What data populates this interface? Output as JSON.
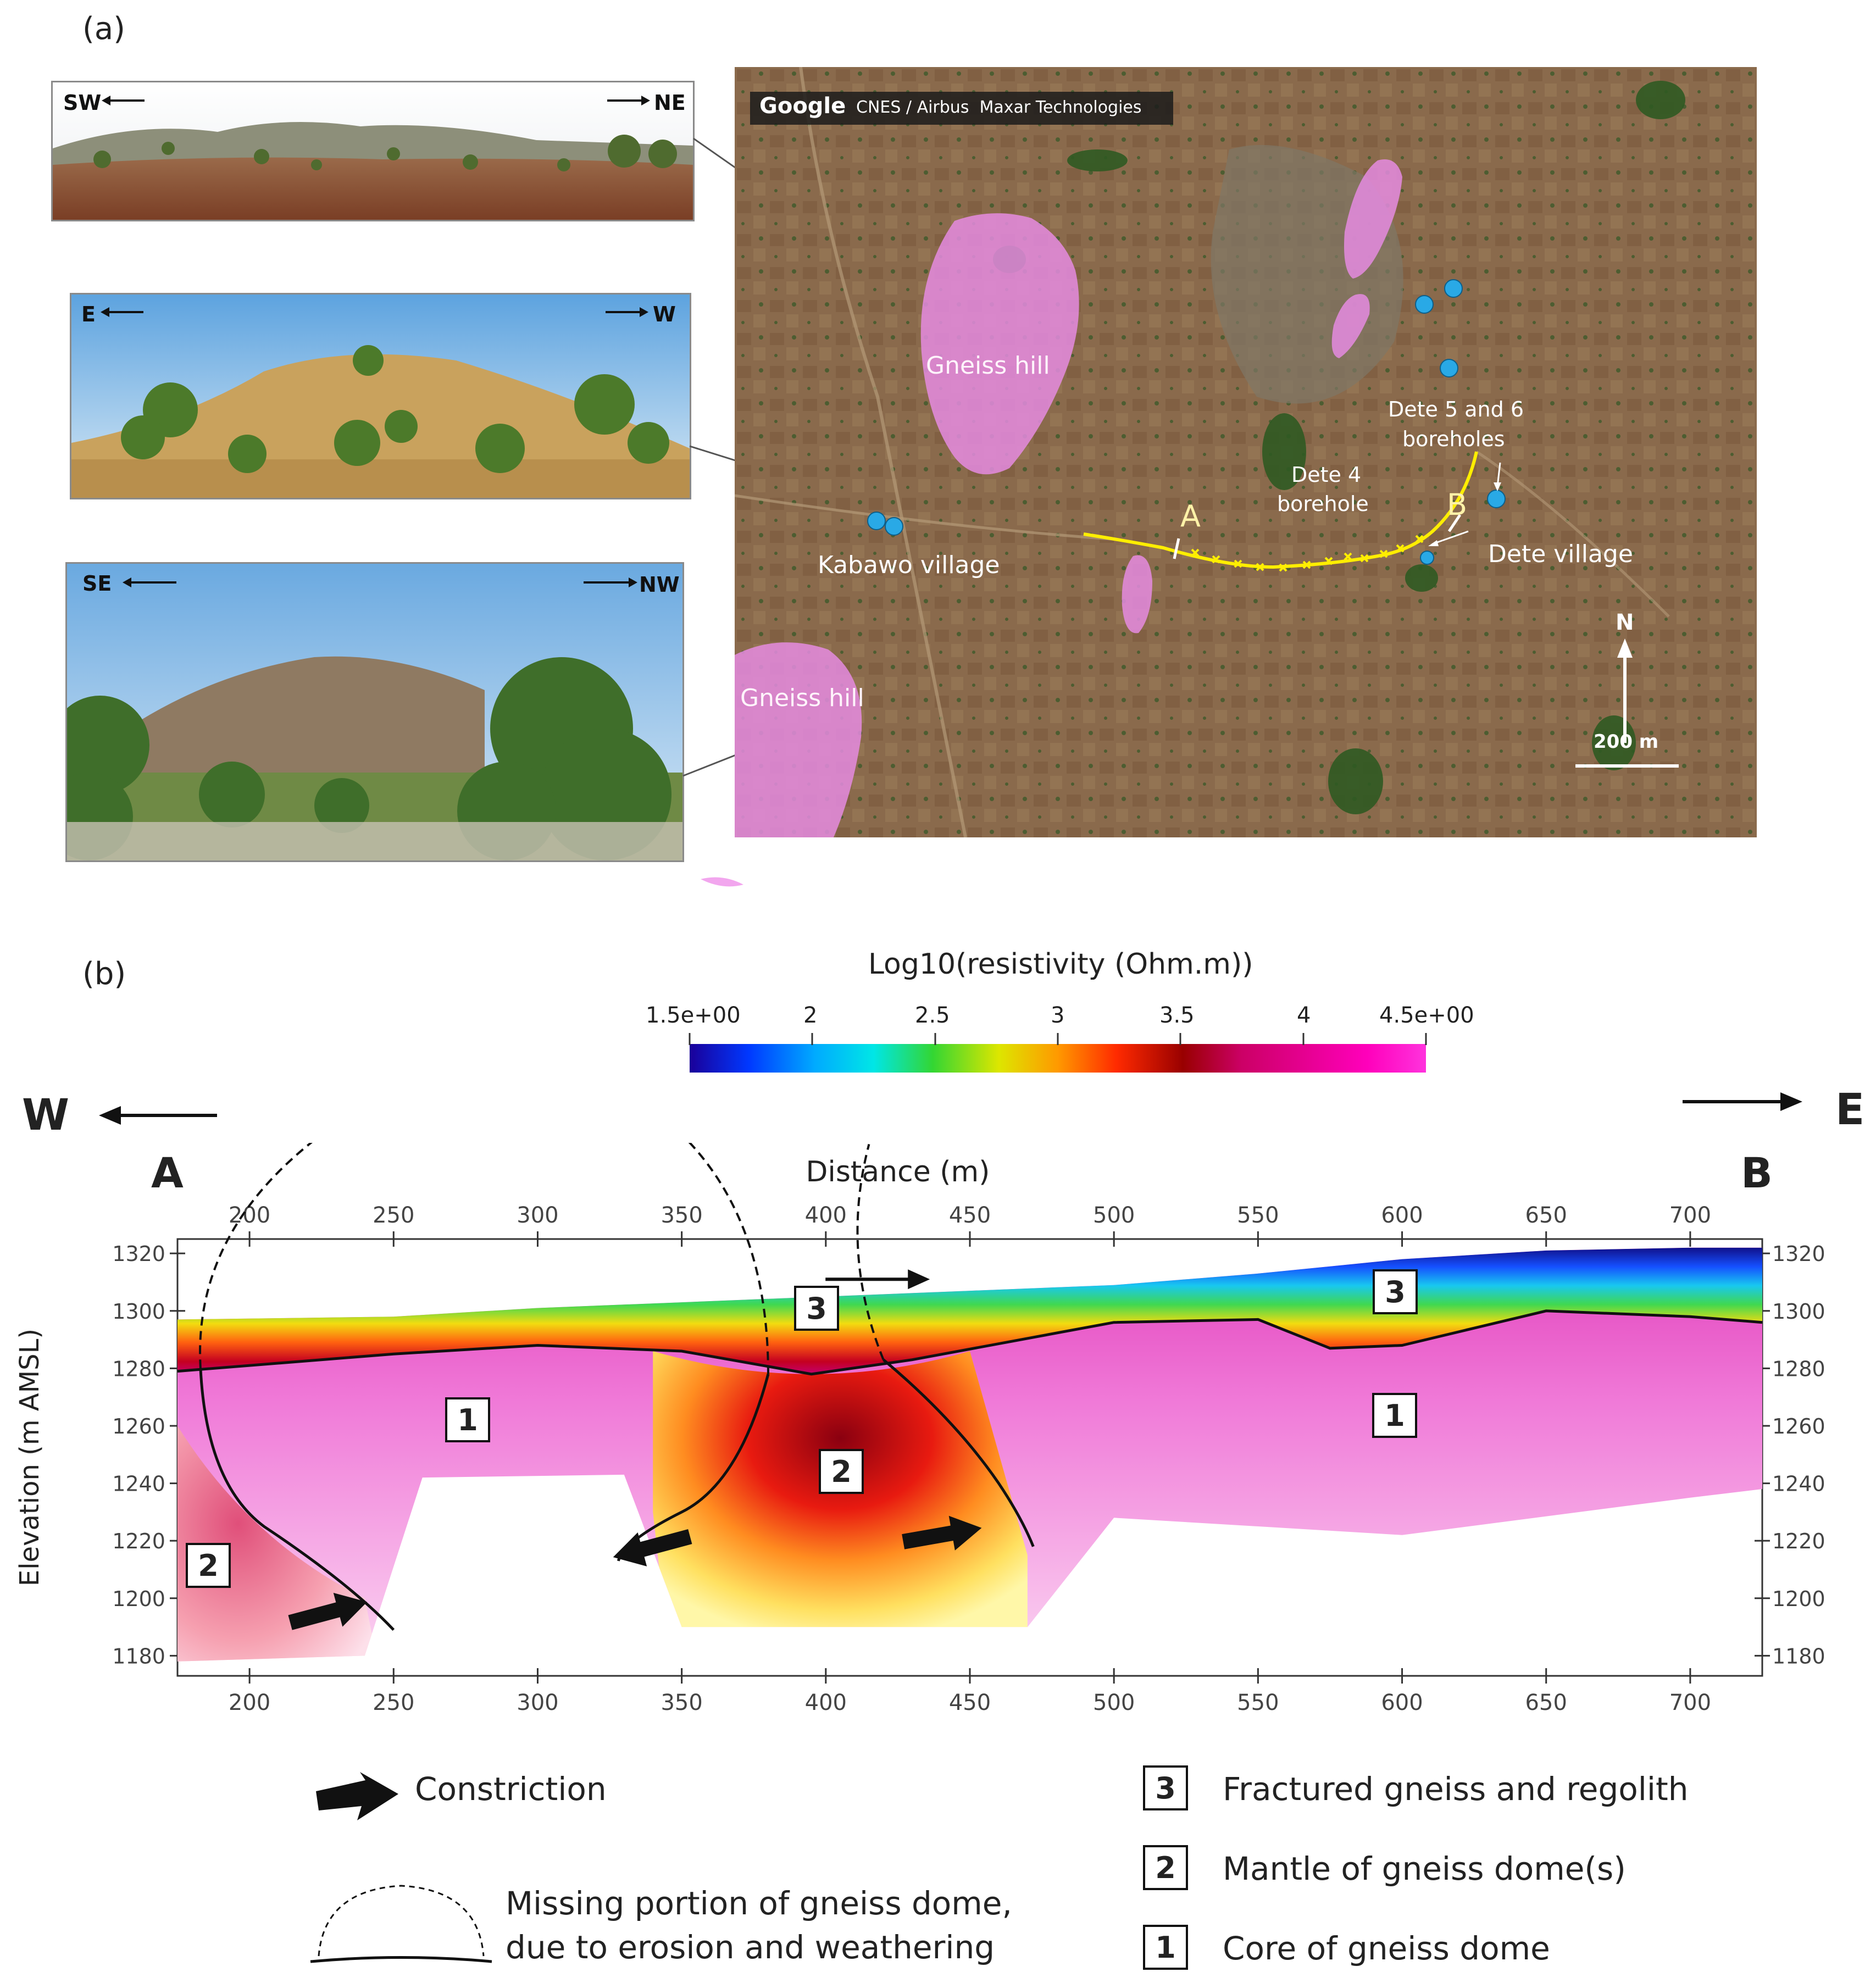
{
  "panel_a": {
    "label": "(a)",
    "photos": [
      {
        "left_dir": "SW",
        "right_dir": "NE"
      },
      {
        "left_dir": "E",
        "right_dir": "W"
      },
      {
        "left_dir": "SE",
        "right_dir": "NW"
      }
    ],
    "map": {
      "attribution_logo": "Google",
      "attribution_text": "CNES / Airbus  Maxar Technologies",
      "labels": {
        "gneiss_hill_1": "Gneiss hill",
        "gneiss_hill_2": "Gneiss hill",
        "kabawo": "Kabawo village",
        "dete_village": "Dete village",
        "dete4_line1": "Dete 4",
        "dete4_line2": "borehole",
        "dete56_line1": "Dete 5 and 6",
        "dete56_line2": "boreholes",
        "point_a": "A",
        "point_b": "B",
        "north": "N",
        "scale": "200 m"
      },
      "colors": {
        "gneiss": "#e58be0",
        "borehole": "#29a9e6",
        "profile": "#ffee00"
      }
    }
  },
  "panel_b": {
    "label": "(b)",
    "west": "W",
    "east": "E",
    "point_a": "A",
    "point_b": "B",
    "colorbar": {
      "title": "Log10(resistivity (Ohm.m))",
      "ticks": [
        "1.5e+00",
        "2",
        "2.5",
        "3",
        "3.5",
        "4",
        "4.5e+00"
      ]
    },
    "zone_labels": {
      "z3a": "3",
      "z3b": "3",
      "z1a": "1",
      "z1b": "1",
      "z2a": "2",
      "z2b": "2"
    },
    "legend": {
      "constriction": "Constriction",
      "missing_line1": "Missing portion of gneiss dome,",
      "missing_line2": "due to erosion and weathering",
      "item3_num": "3",
      "item3": "Fractured gneiss and regolith",
      "item2_num": "2",
      "item2": "Mantle of gneiss dome(s)",
      "item1_num": "1",
      "item1": "Core of gneiss dome"
    }
  },
  "chart_data": {
    "type": "heatmap",
    "title": "Log10(resistivity (Ohm.m))",
    "xlabel": "Distance (m)",
    "ylabel": "Elevation (m AMSL)",
    "xlim": [
      175,
      725
    ],
    "ylim": [
      1173,
      1325
    ],
    "x_ticks": [
      200,
      250,
      300,
      350,
      400,
      450,
      500,
      550,
      600,
      650,
      700
    ],
    "y_ticks": [
      1180,
      1200,
      1220,
      1240,
      1260,
      1280,
      1300,
      1320
    ],
    "color_range": [
      1.5,
      4.5
    ],
    "surface_profile": {
      "x": [
        175,
        250,
        300,
        350,
        400,
        450,
        500,
        550,
        600,
        650,
        700,
        725
      ],
      "y": [
        1297,
        1298,
        1301,
        1303,
        1305,
        1307,
        1309,
        1313,
        1318,
        1321,
        1322,
        1322
      ]
    },
    "weathering_front": {
      "x": [
        175,
        250,
        300,
        350,
        395,
        430,
        500,
        550,
        575,
        600,
        650,
        700,
        725
      ],
      "y": [
        1279,
        1285,
        1288,
        1286,
        1278,
        1283,
        1296,
        1297,
        1287,
        1288,
        1300,
        1298,
        1296
      ]
    },
    "inversion_bottom": {
      "x": [
        175,
        240,
        260,
        330,
        350,
        470,
        500,
        600,
        700,
        725
      ],
      "y": [
        1178,
        1180,
        1242,
        1243,
        1190,
        1190,
        1228,
        1222,
        1235,
        1238
      ]
    }
  }
}
